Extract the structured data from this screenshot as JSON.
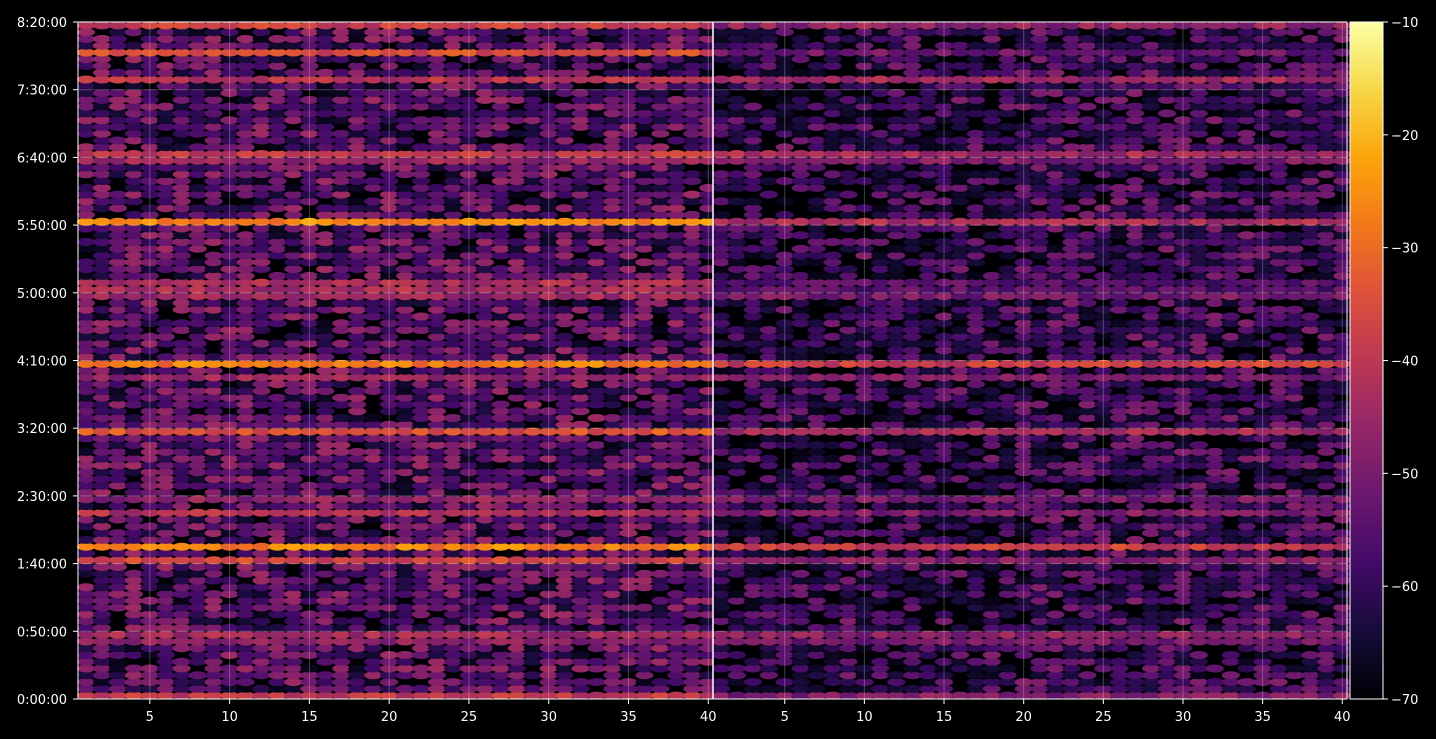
{
  "chart_data": {
    "type": "heatmap",
    "title": "",
    "xlabel": "",
    "ylabel": "",
    "panels": [
      {
        "name": "",
        "x_range": [
          1,
          40
        ],
        "x_ticks": [
          5,
          10,
          15,
          20,
          25,
          30,
          35,
          40
        ],
        "y_range_seconds": [
          0,
          30000
        ]
      },
      {
        "name": "",
        "x_range": [
          1,
          40
        ],
        "x_ticks": [
          5,
          10,
          15,
          20,
          25,
          30,
          35,
          40
        ],
        "y_range_seconds": [
          0,
          30000
        ]
      }
    ],
    "y_tick_labels": [
      "0:00:00",
      "0:50:00",
      "1:40:00",
      "2:30:00",
      "3:20:00",
      "4:10:00",
      "5:00:00",
      "5:50:00",
      "6:40:00",
      "7:30:00",
      "8:20:00"
    ],
    "y_tick_values_seconds": [
      0,
      3000,
      6000,
      9000,
      12000,
      15000,
      18000,
      21000,
      24000,
      27000,
      30000
    ],
    "colorbar": {
      "cmap": "inferno",
      "range": [
        -70,
        -10
      ],
      "ticks": [
        -10,
        -20,
        -30,
        -40,
        -50,
        -60,
        -70
      ],
      "tick_labels": [
        "−10",
        "−20",
        "−30",
        "−40",
        "−50",
        "−60",
        "−70"
      ]
    },
    "grid": true,
    "strong_rows": [
      {
        "time_seconds": 29950,
        "level_left": -38,
        "level_right": -47
      },
      {
        "time_seconds": 28700,
        "level_left": -36,
        "level_right": -52
      },
      {
        "time_seconds": 27350,
        "level_left": -41,
        "level_right": -45
      },
      {
        "time_seconds": 24250,
        "level_left": -40,
        "level_right": -44
      },
      {
        "time_seconds": 23800,
        "level_left": -46,
        "level_right": -50
      },
      {
        "time_seconds": 21250,
        "level_left": -26,
        "level_right": -43
      },
      {
        "time_seconds": 18300,
        "level_left": -43,
        "level_right": -55
      },
      {
        "time_seconds": 17750,
        "level_left": -45,
        "level_right": -51
      },
      {
        "time_seconds": 14750,
        "level_left": -28,
        "level_right": -38
      },
      {
        "time_seconds": 14350,
        "level_left": -46,
        "level_right": -49
      },
      {
        "time_seconds": 11950,
        "level_left": -34,
        "level_right": -44
      },
      {
        "time_seconds": 8750,
        "level_left": -47,
        "level_right": -51
      },
      {
        "time_seconds": 8250,
        "level_left": -42,
        "level_right": -49
      },
      {
        "time_seconds": 6700,
        "level_left": -27,
        "level_right": -38
      },
      {
        "time_seconds": 6200,
        "level_left": -37,
        "level_right": -48
      },
      {
        "time_seconds": 2900,
        "level_left": -44,
        "level_right": -48
      },
      {
        "time_seconds": 2500,
        "level_left": -48,
        "level_right": -51
      },
      {
        "time_seconds": 150,
        "level_left": -40,
        "level_right": -49
      }
    ]
  }
}
